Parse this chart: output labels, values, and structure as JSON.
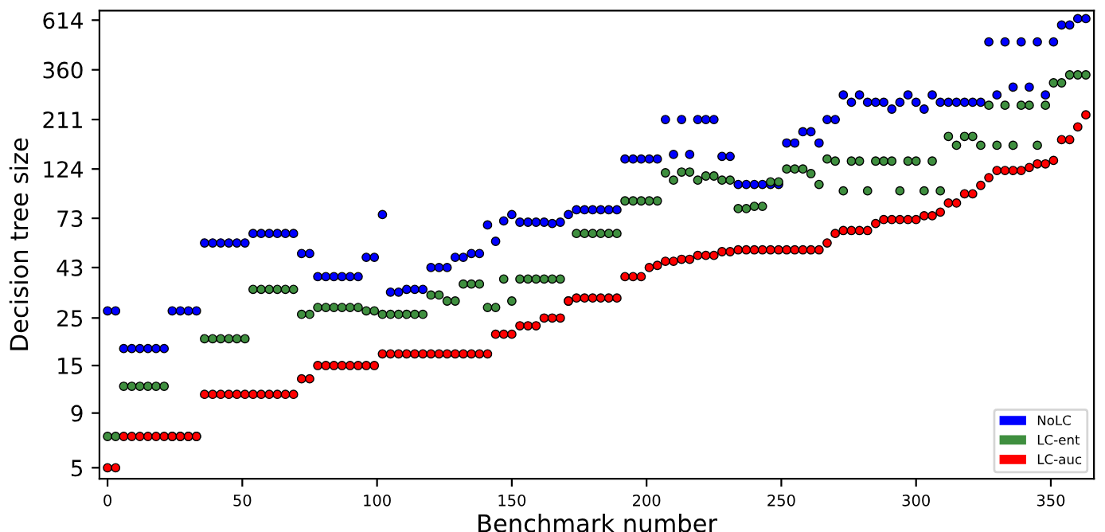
{
  "chart_data": {
    "type": "scatter",
    "xlabel": "Benchmark number",
    "ylabel": "Decision tree size",
    "x": [
      0,
      3,
      6,
      9,
      12,
      15,
      18,
      21,
      24,
      27,
      30,
      33,
      36,
      39,
      42,
      45,
      48,
      51,
      54,
      57,
      60,
      63,
      66,
      69,
      72,
      75,
      78,
      81,
      84,
      87,
      90,
      93,
      96,
      99,
      102,
      105,
      108,
      111,
      114,
      117,
      120,
      123,
      126,
      129,
      132,
      135,
      138,
      141,
      144,
      147,
      150,
      153,
      156,
      159,
      162,
      165,
      168,
      171,
      174,
      177,
      180,
      183,
      186,
      189,
      192,
      195,
      198,
      201,
      204,
      207,
      210,
      213,
      216,
      219,
      222,
      225,
      228,
      231,
      234,
      237,
      240,
      243,
      246,
      249,
      252,
      255,
      258,
      261,
      264,
      267,
      270,
      273,
      276,
      279,
      282,
      285,
      288,
      291,
      294,
      297,
      300,
      303,
      306,
      309,
      312,
      315,
      318,
      321,
      324,
      327,
      330,
      333,
      336,
      339,
      342,
      345,
      348,
      351,
      354,
      357,
      360,
      363
    ],
    "series": [
      {
        "name": "NoLC",
        "color": "#0000ff",
        "values": [
          27,
          27,
          18,
          18,
          18,
          18,
          18,
          18,
          27,
          27,
          27,
          27,
          56,
          56,
          56,
          56,
          56,
          56,
          62,
          62,
          62,
          62,
          62,
          62,
          50,
          50,
          39,
          39,
          39,
          39,
          39,
          39,
          48,
          48,
          76,
          33,
          33,
          34,
          34,
          34,
          43,
          43,
          43,
          48,
          48,
          50,
          50,
          68,
          57,
          71,
          76,
          70,
          70,
          70,
          70,
          69,
          70,
          76,
          80,
          80,
          80,
          80,
          80,
          80,
          138,
          138,
          138,
          138,
          138,
          211,
          145,
          211,
          145,
          211,
          211,
          211,
          142,
          142,
          105,
          105,
          105,
          105,
          105,
          105,
          164,
          164,
          185,
          185,
          164,
          211,
          211,
          275,
          254,
          275,
          254,
          254,
          254,
          236,
          254,
          275,
          254,
          236,
          275,
          254,
          254,
          254,
          254,
          254,
          254,
          486,
          275,
          486,
          299,
          486,
          299,
          486,
          275,
          486,
          583,
          583,
          624,
          624
        ]
      },
      {
        "name": "LC-ent",
        "color": "#3f8f3f",
        "values": [
          7,
          7,
          12,
          12,
          12,
          12,
          12,
          12,
          7,
          7,
          7,
          7,
          20,
          20,
          20,
          20,
          20,
          20,
          34,
          34,
          34,
          34,
          34,
          34,
          26,
          26,
          28,
          28,
          28,
          28,
          28,
          28,
          27,
          27,
          26,
          26,
          26,
          26,
          26,
          26,
          32,
          32,
          30,
          30,
          36,
          36,
          36,
          28,
          28,
          38,
          30,
          38,
          38,
          38,
          38,
          38,
          38,
          30,
          62,
          62,
          62,
          62,
          62,
          62,
          88,
          88,
          88,
          88,
          88,
          119,
          110,
          120,
          120,
          110,
          115,
          115,
          110,
          110,
          81,
          81,
          83,
          83,
          108,
          108,
          124,
          124,
          124,
          118,
          105,
          138,
          135,
          98,
          135,
          135,
          98,
          135,
          135,
          135,
          98,
          135,
          135,
          98,
          135,
          98,
          176,
          160,
          176,
          176,
          160,
          246,
          160,
          246,
          160,
          246,
          246,
          160,
          246,
          313,
          313,
          341,
          341,
          341
        ]
      },
      {
        "name": "LC-auc",
        "color": "#ff0000",
        "values": [
          5,
          5,
          7,
          7,
          7,
          7,
          7,
          7,
          7,
          7,
          7,
          7,
          11,
          11,
          11,
          11,
          11,
          11,
          11,
          11,
          11,
          11,
          11,
          11,
          13,
          13,
          15,
          15,
          15,
          15,
          15,
          15,
          15,
          15,
          17,
          17,
          17,
          17,
          17,
          17,
          17,
          17,
          17,
          17,
          17,
          17,
          17,
          17,
          21,
          21,
          21,
          23,
          23,
          23,
          25,
          25,
          25,
          30,
          31,
          31,
          31,
          31,
          31,
          31,
          39,
          39,
          39,
          43,
          44,
          46,
          46,
          47,
          47,
          49,
          49,
          49,
          51,
          51,
          52,
          52,
          52,
          52,
          52,
          52,
          52,
          52,
          52,
          52,
          52,
          56,
          62,
          64,
          64,
          64,
          64,
          69,
          72,
          72,
          72,
          72,
          72,
          75,
          75,
          78,
          86,
          86,
          95,
          95,
          104,
          113,
          122,
          122,
          122,
          122,
          126,
          131,
          131,
          136,
          170,
          170,
          195,
          222
        ]
      }
    ],
    "log": "y",
    "xlim": [
      -3,
      366
    ],
    "ylim": [
      4.44,
      680
    ],
    "xticks": [
      0,
      50,
      100,
      150,
      200,
      250,
      300,
      350
    ],
    "yticks": [
      5,
      9,
      15,
      25,
      43,
      73,
      124,
      211,
      360,
      614
    ],
    "marker": "circle",
    "legend": "bottom right",
    "grid": false
  }
}
